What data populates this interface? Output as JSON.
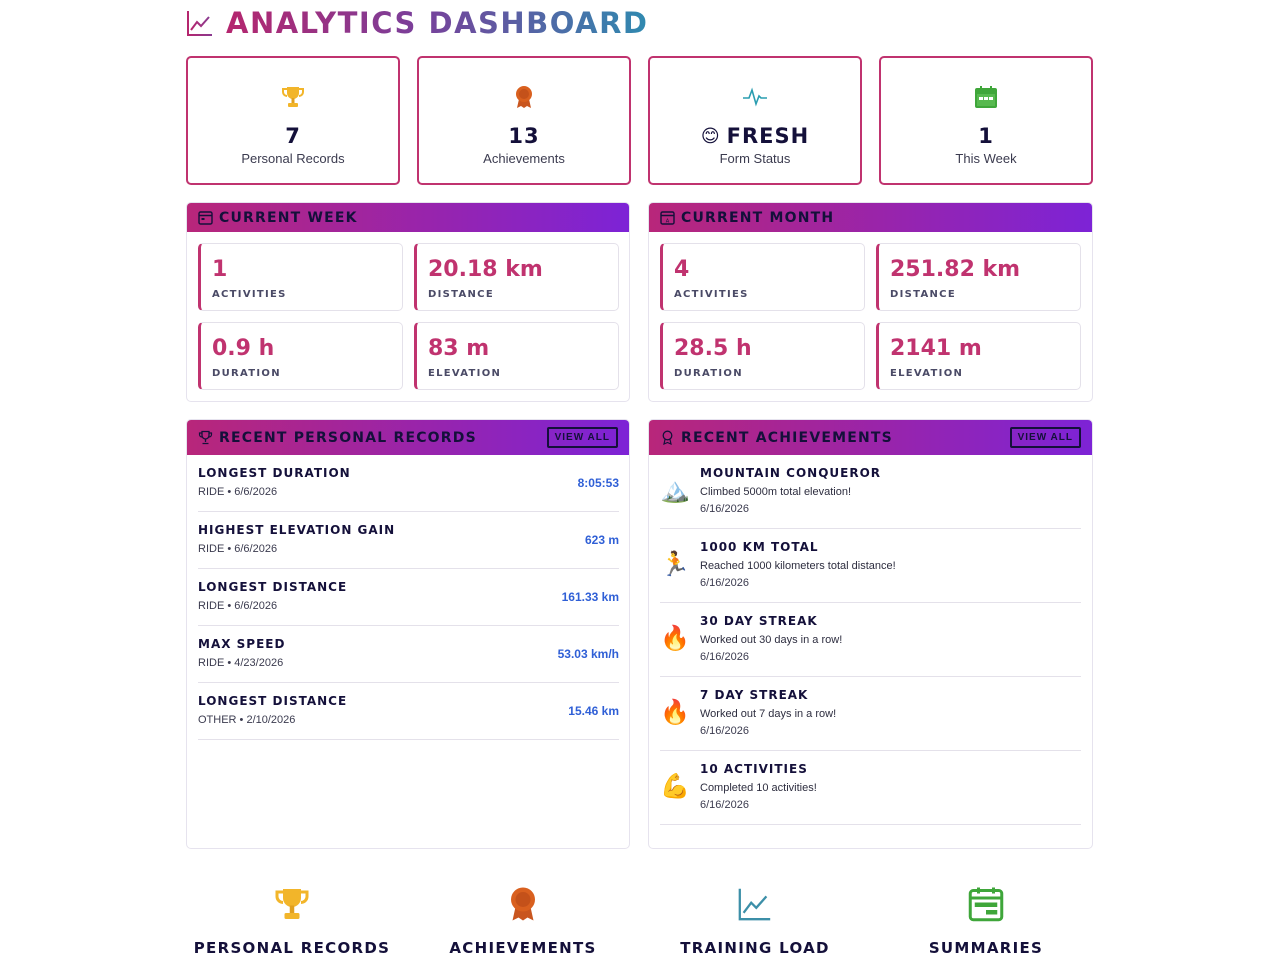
{
  "header": {
    "title": "ANALYTICS DASHBOARD",
    "icon": "chart-line-icon"
  },
  "colors": {
    "accent": "#c0336f",
    "panel_gradient_start": "#b8267a",
    "panel_gradient_end": "#7d23d6",
    "value_blue": "#2f5fd6"
  },
  "stats": [
    {
      "icon": "trophy-icon",
      "value": "7",
      "label": "Personal Records"
    },
    {
      "icon": "medal-icon",
      "value": "13",
      "label": "Achievements"
    },
    {
      "icon": "pulse-icon",
      "emoji": "😊",
      "value": "FRESH",
      "label": "Form Status"
    },
    {
      "icon": "calendar-icon",
      "value": "1",
      "label": "This Week"
    }
  ],
  "current_week": {
    "title": "CURRENT WEEK",
    "metrics": [
      {
        "value": "1",
        "label": "ACTIVITIES"
      },
      {
        "value": "20.18 km",
        "label": "DISTANCE"
      },
      {
        "value": "0.9 h",
        "label": "DURATION"
      },
      {
        "value": "83 m",
        "label": "ELEVATION"
      }
    ]
  },
  "current_month": {
    "title": "CURRENT MONTH",
    "metrics": [
      {
        "value": "4",
        "label": "ACTIVITIES"
      },
      {
        "value": "251.82 km",
        "label": "DISTANCE"
      },
      {
        "value": "28.5 h",
        "label": "DURATION"
      },
      {
        "value": "2141 m",
        "label": "ELEVATION"
      }
    ]
  },
  "records": {
    "title": "RECENT PERSONAL RECORDS",
    "view_all": "VIEW ALL",
    "items": [
      {
        "title": "LONGEST DURATION",
        "sub": "RIDE • 6/6/2026",
        "value": "8:05:53"
      },
      {
        "title": "HIGHEST ELEVATION GAIN",
        "sub": "RIDE • 6/6/2026",
        "value": "623 m"
      },
      {
        "title": "LONGEST DISTANCE",
        "sub": "RIDE • 6/6/2026",
        "value": "161.33 km"
      },
      {
        "title": "MAX SPEED",
        "sub": "RIDE • 4/23/2026",
        "value": "53.03 km/h"
      },
      {
        "title": "LONGEST DISTANCE",
        "sub": "OTHER • 2/10/2026",
        "value": "15.46 km"
      }
    ]
  },
  "achievements": {
    "title": "RECENT ACHIEVEMENTS",
    "view_all": "VIEW ALL",
    "items": [
      {
        "emoji": "🏔️",
        "title": "MOUNTAIN CONQUEROR",
        "desc": "Climbed 5000m total elevation!",
        "date": "6/16/2026"
      },
      {
        "emoji": "🏃",
        "title": "1000 KM TOTAL",
        "desc": "Reached 1000 kilometers total distance!",
        "date": "6/16/2026"
      },
      {
        "emoji": "🔥",
        "title": "30 DAY STREAK",
        "desc": "Worked out 30 days in a row!",
        "date": "6/16/2026"
      },
      {
        "emoji": "🔥",
        "title": "7 DAY STREAK",
        "desc": "Worked out 7 days in a row!",
        "date": "6/16/2026"
      },
      {
        "emoji": "💪",
        "title": "10 ACTIVITIES",
        "desc": "Completed 10 activities!",
        "date": "6/16/2026"
      }
    ]
  },
  "bottom_nav": [
    {
      "icon": "trophy-icon",
      "label": "PERSONAL RECORDS"
    },
    {
      "icon": "medal-icon",
      "label": "ACHIEVEMENTS"
    },
    {
      "icon": "chart-line-icon",
      "label": "TRAINING LOAD"
    },
    {
      "icon": "calendar-icon",
      "label": "SUMMARIES"
    }
  ]
}
